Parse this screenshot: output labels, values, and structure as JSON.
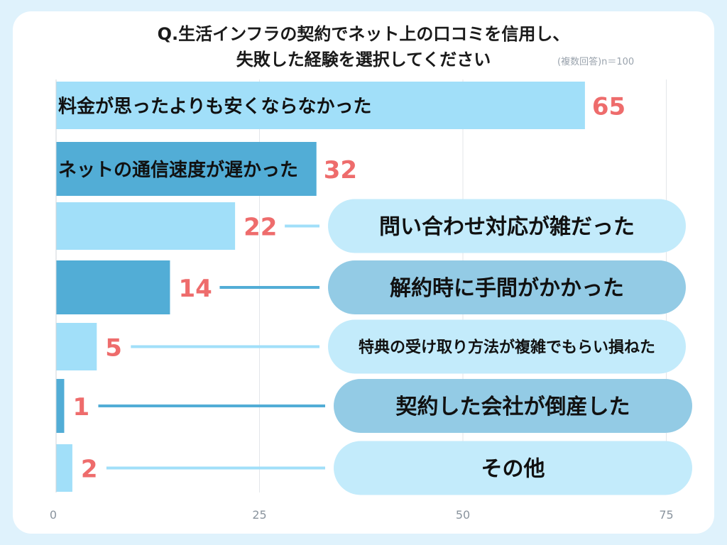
{
  "title_line1": "Q.生活インフラの契約でネット上の口コミを信用し、",
  "title_line2": "失敗した経験を選択してください",
  "note": "(複数回答)n＝100",
  "colors": {
    "light": "#a1dff9",
    "dark": "#52add6",
    "value": "#ee6c6c",
    "bubble_light": "#c3ebfb",
    "bubble_dark": "#93cbe5"
  },
  "chart_data": {
    "type": "bar",
    "orientation": "horizontal",
    "categories": [
      "料金が思ったよりも安くならなかった",
      "ネットの通信速度が遅かった",
      "問い合わせ対応が雑だった",
      "解約時に手間がかかった",
      "特典の受け取り方法が複雑でもらい損ねた",
      "契約した会社が倒産した",
      "その他"
    ],
    "values": [
      65,
      32,
      22,
      14,
      5,
      1,
      2
    ],
    "xlim": [
      0,
      75
    ],
    "xticks": [
      0,
      25,
      50,
      75
    ],
    "grid": true
  }
}
